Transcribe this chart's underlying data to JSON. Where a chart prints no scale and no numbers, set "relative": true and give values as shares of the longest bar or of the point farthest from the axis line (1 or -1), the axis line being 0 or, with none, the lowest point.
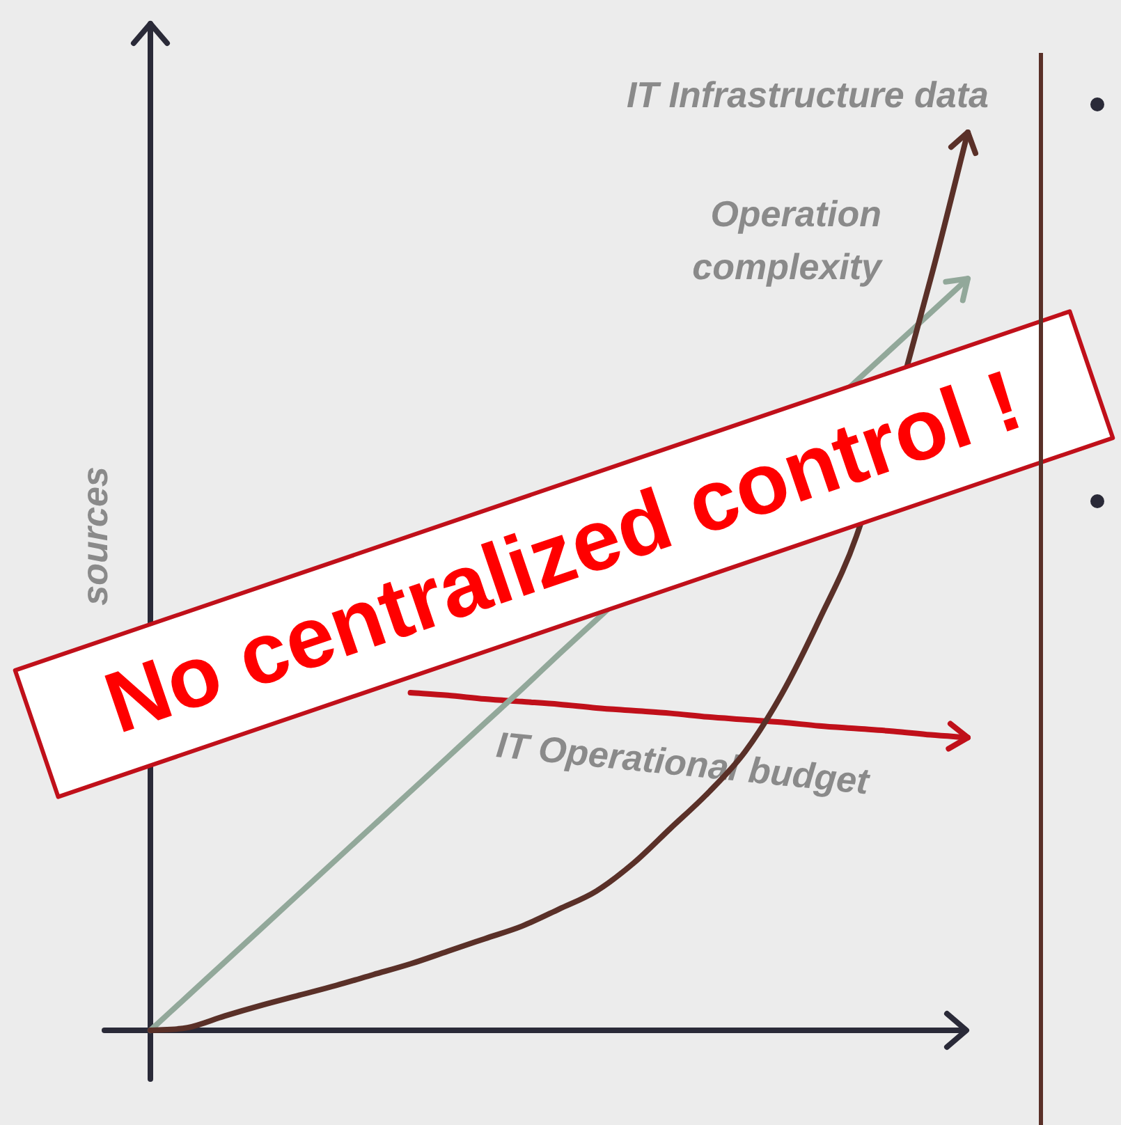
{
  "chart_data": {
    "type": "line",
    "relative": true,
    "ylabel": "sources",
    "categories": [
      null,
      null,
      null,
      null,
      null,
      null,
      null,
      null,
      null,
      null,
      null,
      null,
      null,
      null,
      null,
      null,
      null,
      null,
      null,
      null,
      null,
      null,
      null
    ],
    "series": [
      {
        "name": "IT Infrastructure data",
        "color": "#5a3028",
        "values": [
          0,
          0.003,
          0.016,
          0.028,
          0.039,
          0.05,
          0.062,
          0.074,
          0.088,
          0.102,
          0.116,
          0.135,
          0.155,
          0.186,
          0.225,
          0.264,
          0.31,
          0.375,
          0.457,
          0.55,
          null,
          0.837,
          1
        ]
      },
      {
        "name": "Operation complexity",
        "color": "#92a89a",
        "values": [
          0,
          0.038,
          0.076,
          0.114,
          0.152,
          0.19,
          0.228,
          0.266,
          0.304,
          0.342,
          0.38,
          0.419,
          0.457,
          null,
          null,
          null,
          null,
          null,
          null,
          null,
          0.761,
          0.799,
          0.837
        ]
      },
      {
        "name": "IT Operational budget",
        "color": "#c0101a",
        "values": [
          null,
          null,
          null,
          null,
          null,
          null,
          null,
          0.376,
          0.373,
          0.369,
          0.366,
          0.363,
          0.359,
          0.356,
          0.353,
          0.349,
          0.346,
          0.343,
          0.339,
          0.336,
          0.333,
          0.329,
          0.326
        ]
      }
    ],
    "annotations": [
      "No centralized control !"
    ],
    "legend": false,
    "marker": "none",
    "line_style": "solid"
  }
}
